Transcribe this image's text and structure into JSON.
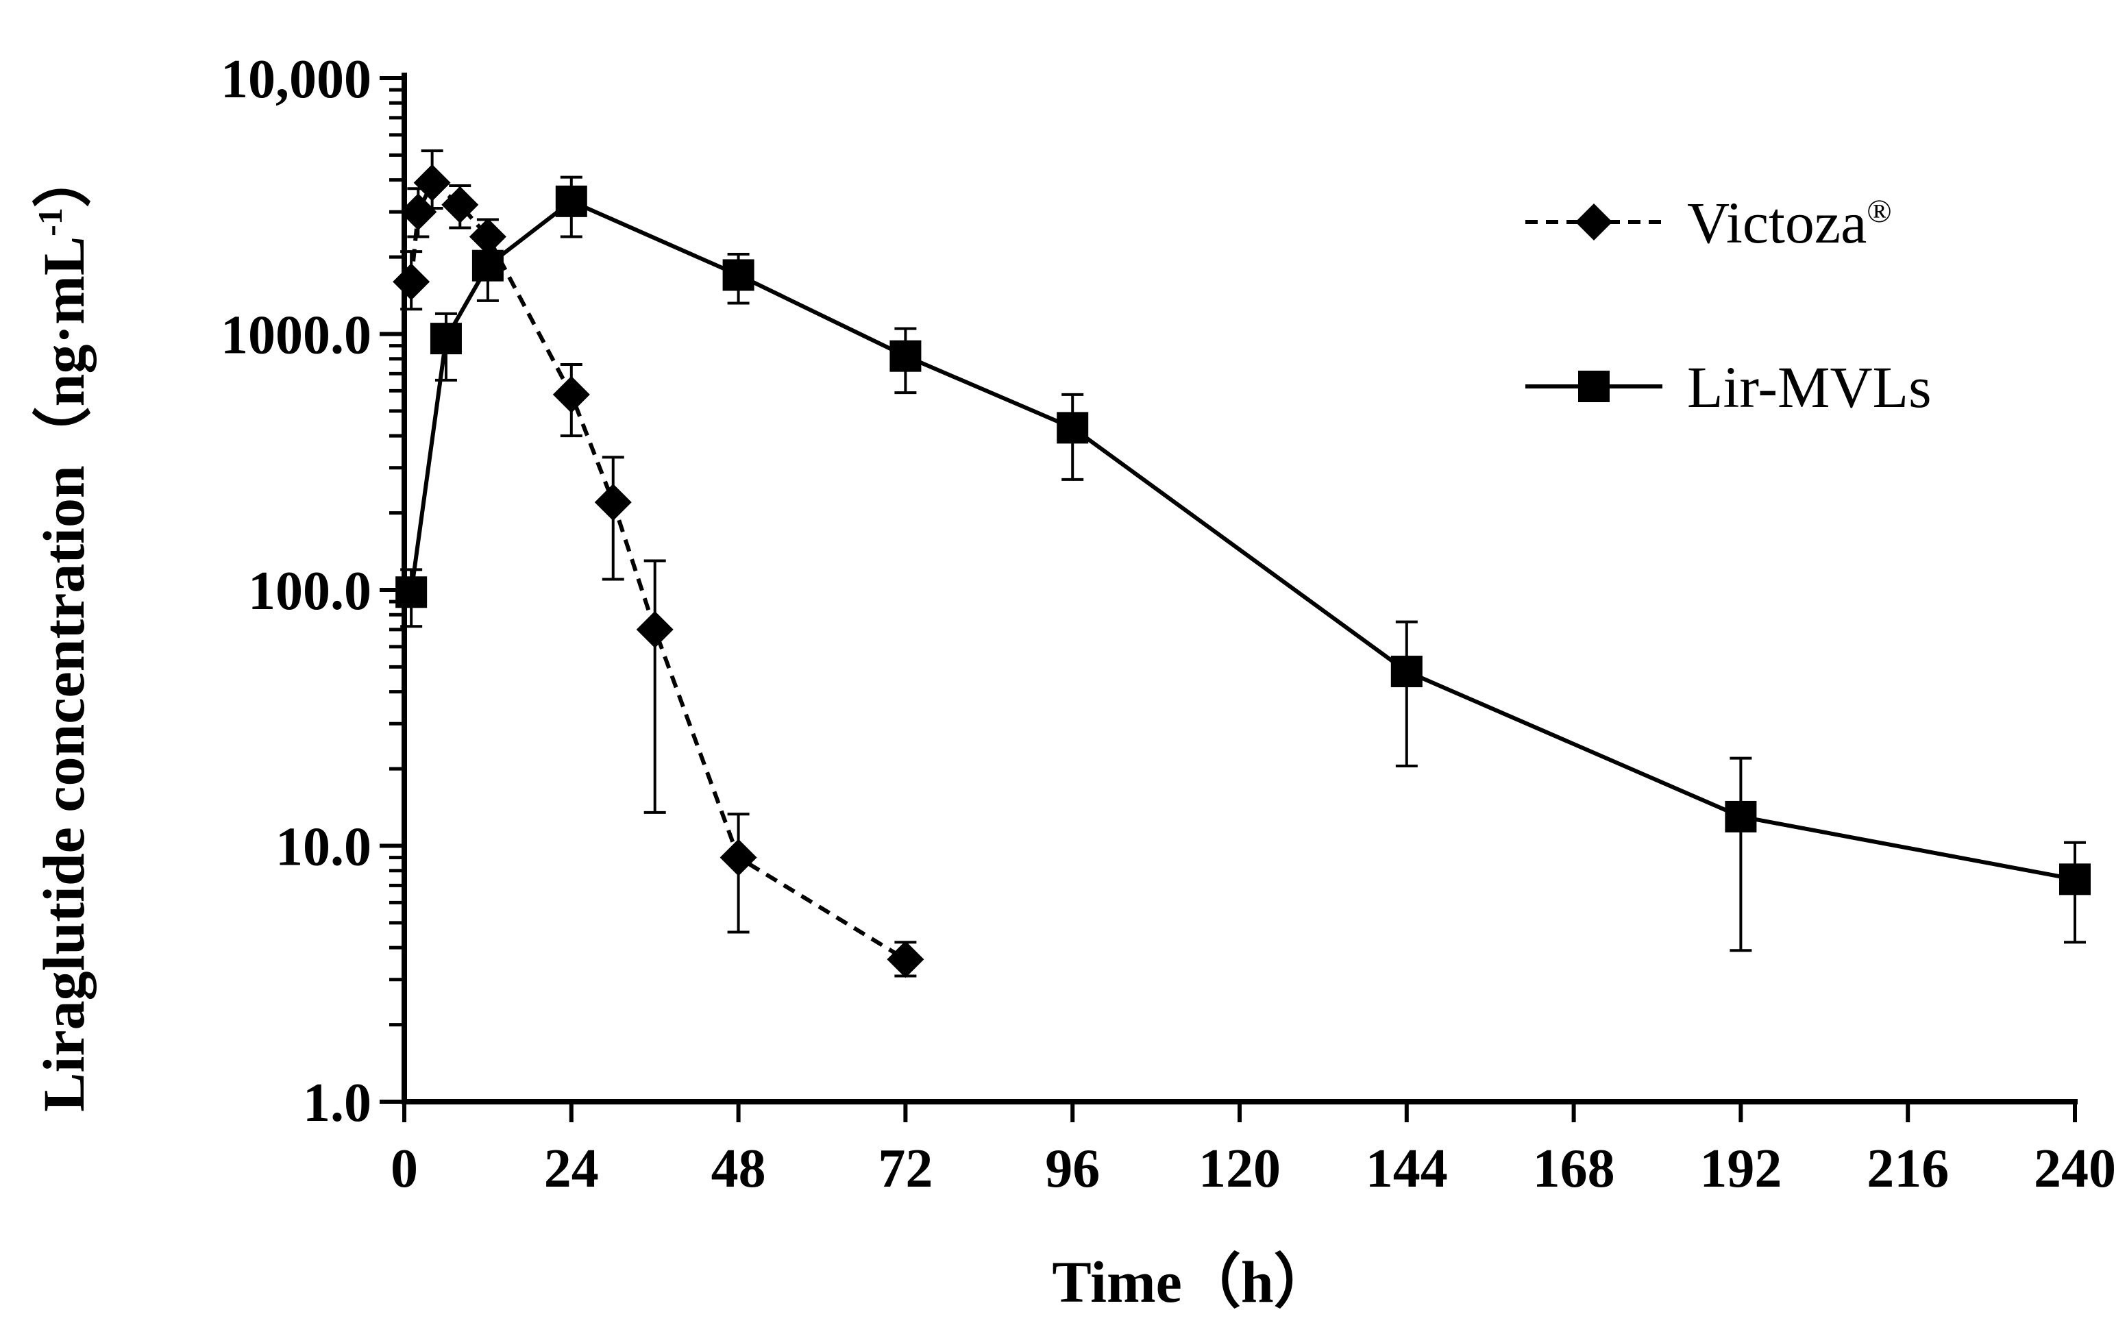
{
  "chart_data": {
    "type": "line",
    "xlabel": "Time（h）",
    "ylabel": "Liraglutide concentration（ng·mL",
    "ylabel_superscript": "-1",
    "ylabel_close": "）",
    "yscale": "log",
    "xlim": [
      0,
      240
    ],
    "ylim": [
      1,
      10000
    ],
    "x_ticks": [
      0,
      24,
      48,
      72,
      96,
      120,
      144,
      168,
      192,
      216,
      240
    ],
    "x_tick_labels": [
      "0",
      "24",
      "48",
      "72",
      "96",
      "120",
      "144",
      "168",
      "192",
      "216",
      "240"
    ],
    "y_ticks": [
      1,
      10,
      100,
      1000,
      10000
    ],
    "y_tick_labels": [
      "1.0",
      "10.0",
      "100.0",
      "1000.0",
      "10,000"
    ],
    "legend_position": "top-right",
    "series": [
      {
        "name": "Victoza",
        "name_superscript": "®",
        "marker": "diamond",
        "line_style": "dashed",
        "x": [
          1,
          2,
          4,
          8,
          12,
          24,
          30,
          36,
          48,
          72
        ],
        "y": [
          1600,
          3000,
          3900,
          3200,
          2400,
          580,
          220,
          70,
          9,
          3.6
        ],
        "err_upper": [
          2100,
          3700,
          5200,
          3800,
          2800,
          760,
          330,
          130,
          13.3,
          4.2
        ],
        "err_lower": [
          1250,
          2400,
          3100,
          2600,
          2000,
          400,
          110,
          13.5,
          4.6,
          3.1
        ]
      },
      {
        "name": "Lir-MVLs",
        "marker": "square",
        "line_style": "solid",
        "x": [
          1,
          6,
          12,
          24,
          48,
          72,
          96,
          144,
          192,
          240
        ],
        "y": [
          98,
          960,
          1850,
          3300,
          1700,
          820,
          430,
          48,
          13,
          7.4
        ],
        "err_upper": [
          120,
          1200,
          2500,
          4100,
          2050,
          1050,
          580,
          75,
          22,
          10.3
        ],
        "err_lower": [
          72,
          660,
          1350,
          2400,
          1320,
          590,
          270,
          20.5,
          3.9,
          4.2
        ]
      }
    ]
  }
}
